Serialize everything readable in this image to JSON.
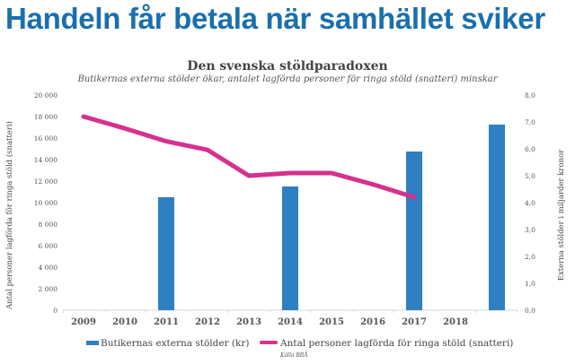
{
  "headline": "Handeln får betala när samhället sviker",
  "colors": {
    "headline": "#1a6fae",
    "bars": "#2e80c2",
    "line": "#d6318f"
  },
  "chart_data": {
    "type": "bar+line",
    "title": "Den svenska stöldparadoxen",
    "subtitle": "Butikernas externa stölder ökar, antalet lagförda personer för ringa stöld (snatteri) minskar",
    "categories": [
      "2009",
      "2010",
      "2011",
      "2012",
      "2013",
      "2014",
      "2015",
      "2016",
      "2017",
      "2018",
      ""
    ],
    "y_left": {
      "label": "Antal personer lagförda för ringa stöld (snatteri)",
      "range": [
        0,
        20000
      ],
      "ticks": [
        0,
        2000,
        4000,
        6000,
        8000,
        10000,
        12000,
        14000,
        16000,
        18000,
        20000
      ],
      "tick_labels": [
        "0",
        "2 000",
        "4 000",
        "6 000",
        "8 000",
        "10 000",
        "12 000",
        "14 000",
        "16 000",
        "18 000",
        "20 000"
      ]
    },
    "y_right": {
      "label": "Externa stölder i miljarder kronor",
      "range": [
        0,
        8
      ],
      "ticks": [
        0,
        1,
        2,
        3,
        4,
        5,
        6,
        7,
        8
      ],
      "tick_labels": [
        "0,0",
        "1,0",
        "2,0",
        "3,0",
        "4,0",
        "5,0",
        "6,0",
        "7,0",
        "8,0"
      ]
    },
    "series": [
      {
        "name": "Butikernas externa stölder (kr)",
        "type": "bar",
        "axis": "right",
        "values": [
          null,
          null,
          4.2,
          null,
          null,
          4.6,
          null,
          null,
          5.9,
          null,
          6.9
        ]
      },
      {
        "name": "Antal personer lagförda för ringa stöld (snatteri)",
        "type": "line",
        "axis": "left",
        "values": [
          18000,
          16900,
          15700,
          14900,
          12500,
          12750,
          12750,
          11700,
          10500,
          null,
          null
        ]
      }
    ],
    "legend_position": "bottom",
    "source": "Källa BRÅ",
    "grid": false
  }
}
